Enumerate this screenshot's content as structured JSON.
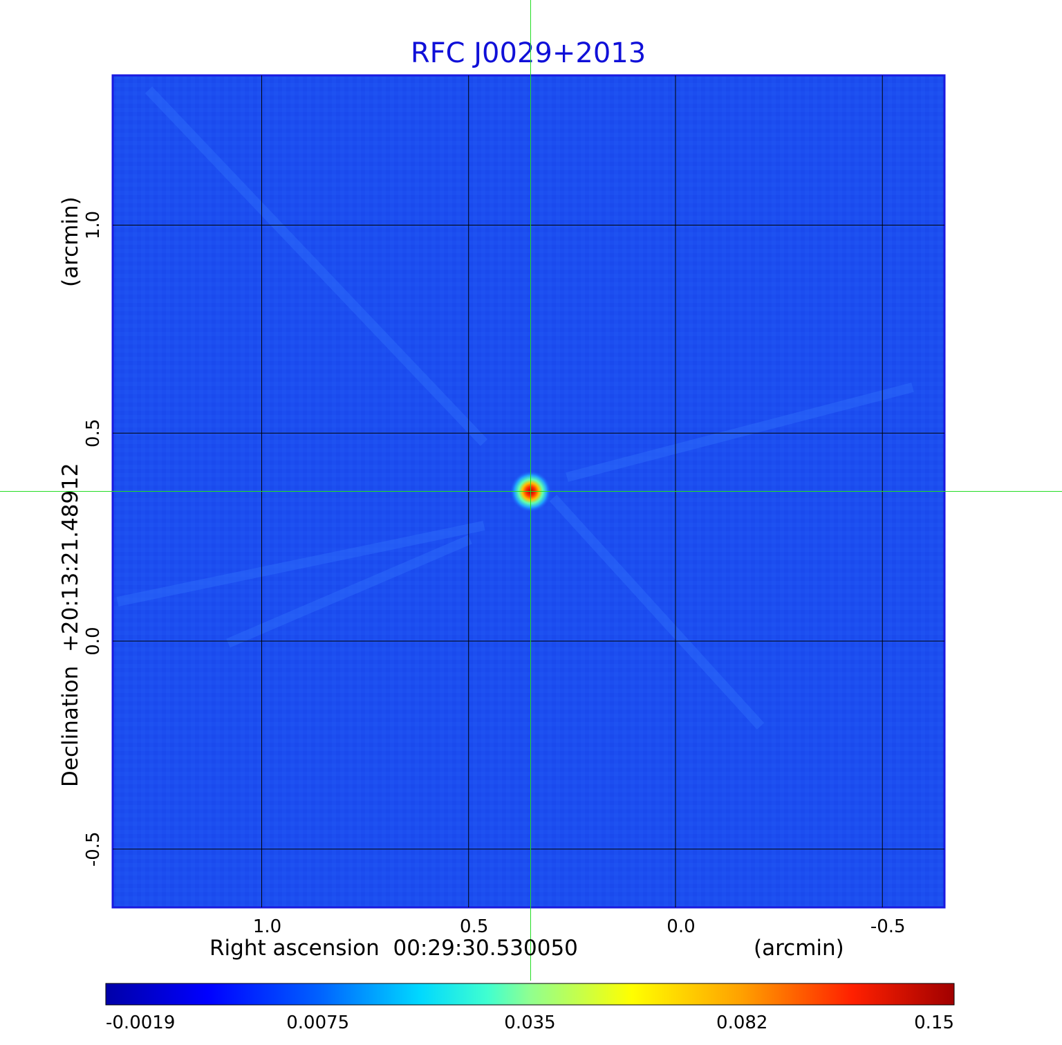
{
  "chart_data": {
    "type": "heatmap",
    "title": "RFC J0029+2013",
    "xlabel": "Right ascension  00:29:30.530050",
    "xunit": "(arcmin)",
    "ylabel": "Declination  +20:13:21.48912",
    "yunit": "(arcmin)",
    "xlim": [
      1.36,
      -0.65
    ],
    "ylim": [
      -0.64,
      1.36
    ],
    "x_ticks": [
      1.0,
      0.5,
      0.0,
      -0.5
    ],
    "x_tick_labels": [
      "1.0",
      "0.5",
      "0.0",
      "-0.5"
    ],
    "y_ticks": [
      1.0,
      0.5,
      0.0,
      -0.5
    ],
    "y_tick_labels": [
      "1.0",
      "0.5",
      "0.0",
      "-0.5"
    ],
    "grid": true,
    "crosshair": {
      "x": 0.35,
      "y": 0.36,
      "color": "#22dd22"
    },
    "source_peak": {
      "x": 0.35,
      "y": 0.36,
      "value": 0.15
    },
    "colorbar": {
      "orientation": "horizontal",
      "position": "bottom",
      "tick_values": [
        -0.0019,
        0.0075,
        0.035,
        0.082,
        0.15
      ],
      "tick_labels": [
        "-0.0019",
        "0.0075",
        "0.035",
        "0.082",
        "0.15"
      ],
      "colormap": "jet"
    },
    "background_color": "#1c4ef0",
    "frame_color": "#1a1ae0",
    "grid_color": "#000000"
  }
}
